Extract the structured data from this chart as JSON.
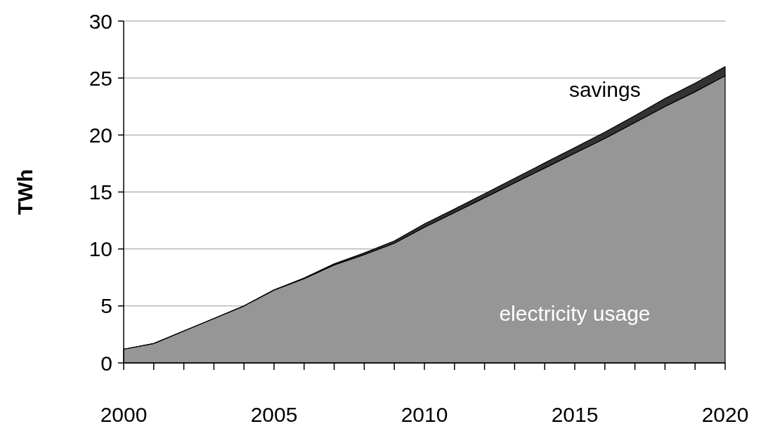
{
  "chart_data": {
    "type": "area",
    "stacked": true,
    "ylabel": "TWh",
    "x": [
      2000,
      2001,
      2002,
      2003,
      2004,
      2005,
      2006,
      2007,
      2008,
      2009,
      2010,
      2011,
      2012,
      2013,
      2014,
      2015,
      2016,
      2017,
      2018,
      2019,
      2020
    ],
    "series": [
      {
        "name": "electricity usage",
        "color": "#969696",
        "values": [
          1.2,
          1.7,
          2.8,
          3.9,
          5.0,
          6.4,
          7.4,
          8.6,
          9.5,
          10.5,
          11.9,
          13.2,
          14.5,
          15.8,
          17.1,
          18.4,
          19.7,
          21.1,
          22.5,
          23.8,
          25.2
        ]
      },
      {
        "name": "savings",
        "color": "#333333",
        "values": [
          0,
          0,
          0,
          0,
          0,
          0,
          0.05,
          0.1,
          0.15,
          0.2,
          0.3,
          0.3,
          0.35,
          0.4,
          0.45,
          0.5,
          0.55,
          0.6,
          0.7,
          0.75,
          0.8
        ]
      }
    ],
    "xlim": [
      2000,
      2020
    ],
    "xticks": [
      2000,
      {
        "value": 2001,
        "label": null
      },
      {
        "value": 2002,
        "label": null
      },
      {
        "value": 2003,
        "label": null
      },
      {
        "value": 2004,
        "label": null
      },
      2005,
      {
        "value": 2006,
        "label": null
      },
      {
        "value": 2007,
        "label": null
      },
      {
        "value": 2008,
        "label": null
      },
      {
        "value": 2009,
        "label": null
      },
      2010,
      {
        "value": 2011,
        "label": null
      },
      {
        "value": 2012,
        "label": null
      },
      {
        "value": 2013,
        "label": null
      },
      {
        "value": 2014,
        "label": null
      },
      2015,
      {
        "value": 2016,
        "label": null
      },
      {
        "value": 2017,
        "label": null
      },
      {
        "value": 2018,
        "label": null
      },
      {
        "value": 2019,
        "label": null
      },
      2020
    ],
    "ylim": [
      0,
      30
    ],
    "yticks": [
      0,
      5,
      10,
      15,
      20,
      25,
      30
    ],
    "grid": "y",
    "legend": false
  }
}
